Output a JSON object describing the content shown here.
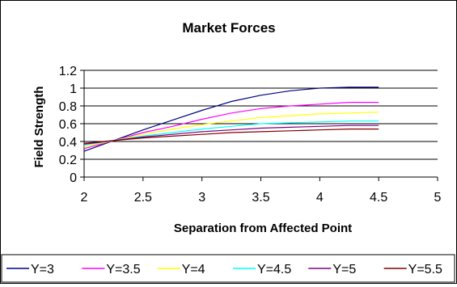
{
  "chart_data": {
    "type": "line",
    "title": "Market Forces",
    "xlabel": "Separation from Affected Point",
    "ylabel": "Field Strength",
    "xlim": [
      2,
      5
    ],
    "ylim": [
      0,
      1.2
    ],
    "x_ticks": [
      "2",
      "2.5",
      "3",
      "3.5",
      "4",
      "4.5",
      "5"
    ],
    "y_ticks": [
      "0",
      "0.2",
      "0.4",
      "0.6",
      "0.8",
      "1",
      "1.2"
    ],
    "grid": "horizontal",
    "legend_position": "bottom",
    "x": [
      2,
      2.25,
      2.5,
      2.75,
      3,
      3.25,
      3.5,
      3.75,
      4,
      4.25,
      4.5
    ],
    "series": [
      {
        "name": "Y=3",
        "color": "#000080",
        "values": [
          0.29,
          0.41,
          0.53,
          0.64,
          0.75,
          0.85,
          0.92,
          0.97,
          1.0,
          1.01,
          1.01
        ]
      },
      {
        "name": "Y=3.5",
        "color": "#FF00FF",
        "values": [
          0.32,
          0.41,
          0.5,
          0.57,
          0.65,
          0.72,
          0.77,
          0.8,
          0.82,
          0.84,
          0.84
        ]
      },
      {
        "name": "Y=4",
        "color": "#FFFF00",
        "values": [
          0.34,
          0.41,
          0.48,
          0.54,
          0.59,
          0.63,
          0.67,
          0.69,
          0.71,
          0.72,
          0.73
        ]
      },
      {
        "name": "Y=4.5",
        "color": "#00FFFF",
        "values": [
          0.36,
          0.41,
          0.46,
          0.5,
          0.54,
          0.57,
          0.6,
          0.61,
          0.62,
          0.63,
          0.63
        ]
      },
      {
        "name": "Y=5",
        "color": "#800080",
        "values": [
          0.37,
          0.41,
          0.45,
          0.48,
          0.51,
          0.53,
          0.55,
          0.56,
          0.57,
          0.58,
          0.58
        ]
      },
      {
        "name": "Y=5.5",
        "color": "#800000",
        "values": [
          0.38,
          0.41,
          0.44,
          0.46,
          0.48,
          0.5,
          0.51,
          0.52,
          0.53,
          0.54,
          0.54
        ]
      }
    ]
  }
}
